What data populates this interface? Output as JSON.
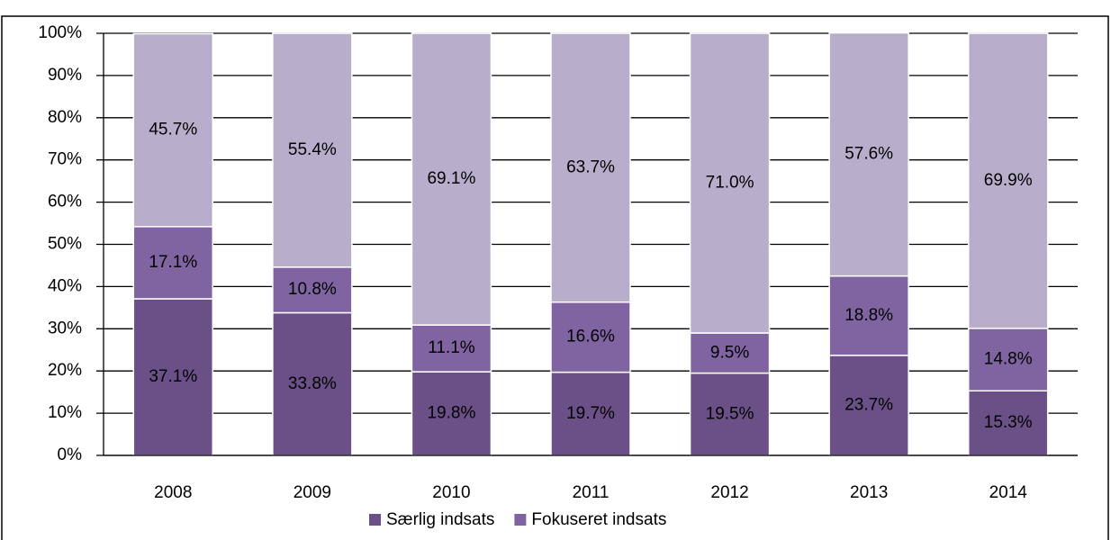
{
  "chart_data": {
    "type": "stacked_bar",
    "categories": [
      "2008",
      "2009",
      "2010",
      "2011",
      "2012",
      "2013",
      "2014"
    ],
    "series": [
      {
        "name": "Særlig indsats",
        "color": "#6a5087",
        "values": [
          37.1,
          33.8,
          19.8,
          19.7,
          19.5,
          23.7,
          15.3
        ],
        "value_labels": [
          "37.1%",
          "33.8%",
          "19.8%",
          "19.7%",
          "19.5%",
          "23.7%",
          "15.3%"
        ]
      },
      {
        "name": "Fokuseret indsats",
        "color": "#8064a2",
        "values": [
          17.1,
          10.8,
          11.1,
          16.6,
          9.5,
          18.8,
          14.8
        ],
        "value_labels": [
          "17.1%",
          "10.8%",
          "11.1%",
          "16.6%",
          "9.5%",
          "18.8%",
          "14.8%"
        ]
      },
      {
        "color": "#b8aecb",
        "values": [
          45.7,
          55.4,
          69.1,
          63.7,
          71.0,
          57.6,
          69.9
        ],
        "value_labels": [
          "45.7%",
          "55.4%",
          "69.1%",
          "63.7%",
          "71.0%",
          "57.6%",
          "69.9%"
        ]
      }
    ],
    "ylim": [
      0,
      100
    ],
    "yticks": [
      {
        "value": 0,
        "label": "0%"
      },
      {
        "value": 10,
        "label": "10%"
      },
      {
        "value": 20,
        "label": "20%"
      },
      {
        "value": 30,
        "label": "30%"
      },
      {
        "value": 40,
        "label": "40%"
      },
      {
        "value": 50,
        "label": "50%"
      },
      {
        "value": 60,
        "label": "60%"
      },
      {
        "value": 70,
        "label": "70%"
      },
      {
        "value": 80,
        "label": "80%"
      },
      {
        "value": 90,
        "label": "90%"
      },
      {
        "value": 100,
        "label": "100%"
      }
    ],
    "grid": true,
    "legend": "bottom"
  }
}
